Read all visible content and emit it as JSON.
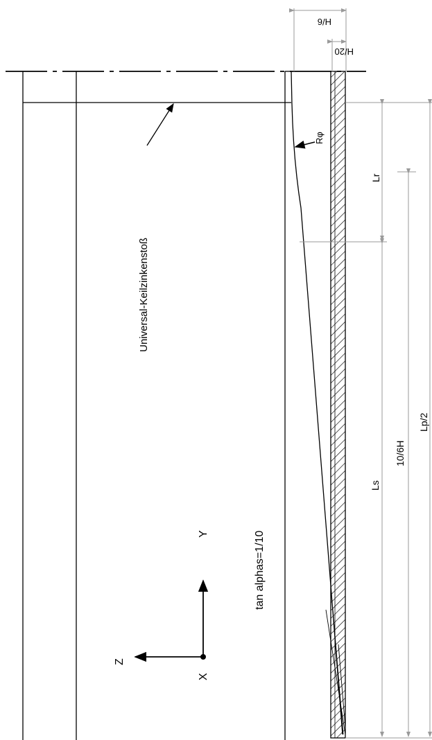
{
  "labels": {
    "joint": "Universal-Keilzinkenstoß",
    "taper": "tan alphas=1/10",
    "radius": "Rφ",
    "axis_x": "X",
    "axis_y": "Y",
    "axis_z": "Z"
  },
  "dimensions": {
    "h6": "H/6",
    "h20": "H/20",
    "lr": "Lr",
    "ls": "Ls",
    "ten_six_h": "10/6H",
    "lp2": "Lp/2"
  },
  "colors": {
    "line": "#000000",
    "dimension": "#9a9a9a"
  }
}
